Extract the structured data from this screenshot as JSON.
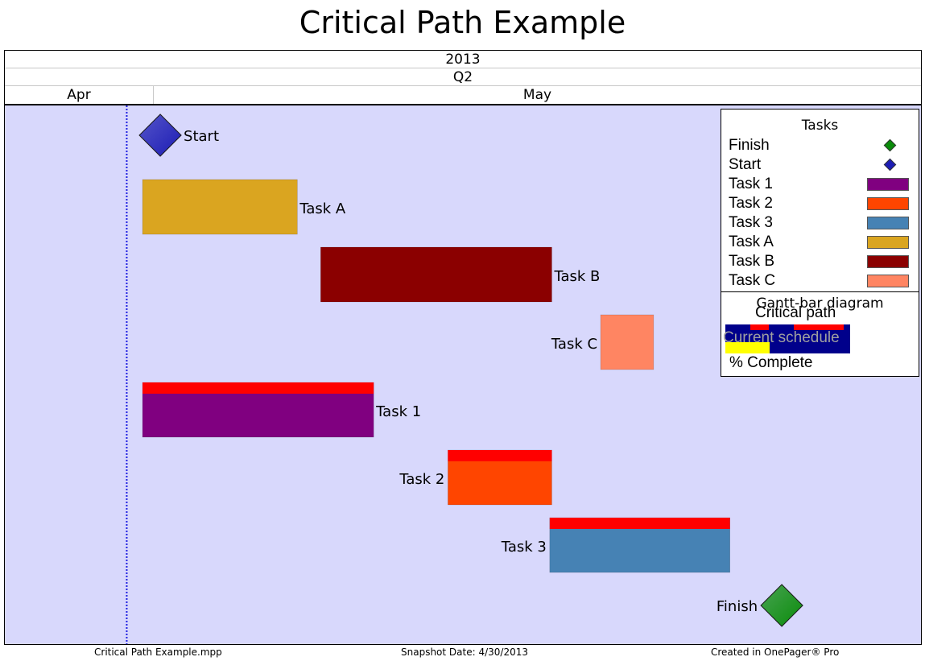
{
  "title": "Critical Path Example",
  "timescale": {
    "year": "2013",
    "quarter": "Q2",
    "months": [
      {
        "label": "Apr"
      },
      {
        "label": "May"
      }
    ]
  },
  "chart_data": {
    "type": "gantt",
    "title": "Critical Path Example",
    "status_date": "2013-04-30",
    "x_range": [
      "2013-04-26",
      "2013-06-01"
    ],
    "tasks": [
      {
        "name": "Start",
        "type": "milestone",
        "date": "2013-05-01",
        "color": "#1c1cb4",
        "label_side": "right"
      },
      {
        "name": "Task A",
        "type": "bar",
        "start": "2013-05-01",
        "end": "2013-05-07",
        "color": "#daa520",
        "critical": false,
        "label_side": "right"
      },
      {
        "name": "Task B",
        "type": "bar",
        "start": "2013-05-08",
        "end": "2013-05-17",
        "color": "#8b0000",
        "critical": false,
        "label_side": "right"
      },
      {
        "name": "Task C",
        "type": "bar",
        "start": "2013-05-19",
        "end": "2013-05-21",
        "color": "#ff8562",
        "critical": false,
        "label_side": "left"
      },
      {
        "name": "Task 1",
        "type": "bar",
        "start": "2013-05-01",
        "end": "2013-05-10",
        "color": "#800080",
        "critical": true,
        "label_side": "right"
      },
      {
        "name": "Task 2",
        "type": "bar",
        "start": "2013-05-13",
        "end": "2013-05-17",
        "color": "#ff4500",
        "critical": true,
        "label_side": "left"
      },
      {
        "name": "Task 3",
        "type": "bar",
        "start": "2013-05-17",
        "end": "2013-05-24",
        "color": "#4682b4",
        "critical": true,
        "label_side": "left"
      },
      {
        "name": "Finish",
        "type": "milestone",
        "date": "2013-05-24",
        "color": "#0a8c0a",
        "label_side": "left"
      }
    ],
    "critical_color": "#ff0000",
    "plot_background": "#d8d8fc"
  },
  "legend": {
    "title": "Tasks",
    "items": [
      {
        "label": "Finish",
        "kind": "diamond",
        "color": "#0a8c0a"
      },
      {
        "label": "Start",
        "kind": "diamond",
        "color": "#1c1cb4"
      },
      {
        "label": "Task 1",
        "kind": "bar",
        "color": "#800080"
      },
      {
        "label": "Task 2",
        "kind": "bar",
        "color": "#ff4500"
      },
      {
        "label": "Task 3",
        "kind": "bar",
        "color": "#4682b4"
      },
      {
        "label": "Task A",
        "kind": "bar",
        "color": "#daa520"
      },
      {
        "label": "Task B",
        "kind": "bar",
        "color": "#8b0000"
      },
      {
        "label": "Task C",
        "kind": "bar",
        "color": "#ff8562"
      }
    ],
    "gantt_title": "Gantt-bar diagram",
    "critical_path_label": "Critical path",
    "current_schedule_label": "Current schedule",
    "percent_complete_label": "% Complete"
  },
  "footer": {
    "file": "Critical Path Example.mpp",
    "snapshot": "Snapshot Date: 4/30/2013",
    "created": "Created in OnePager® Pro"
  }
}
